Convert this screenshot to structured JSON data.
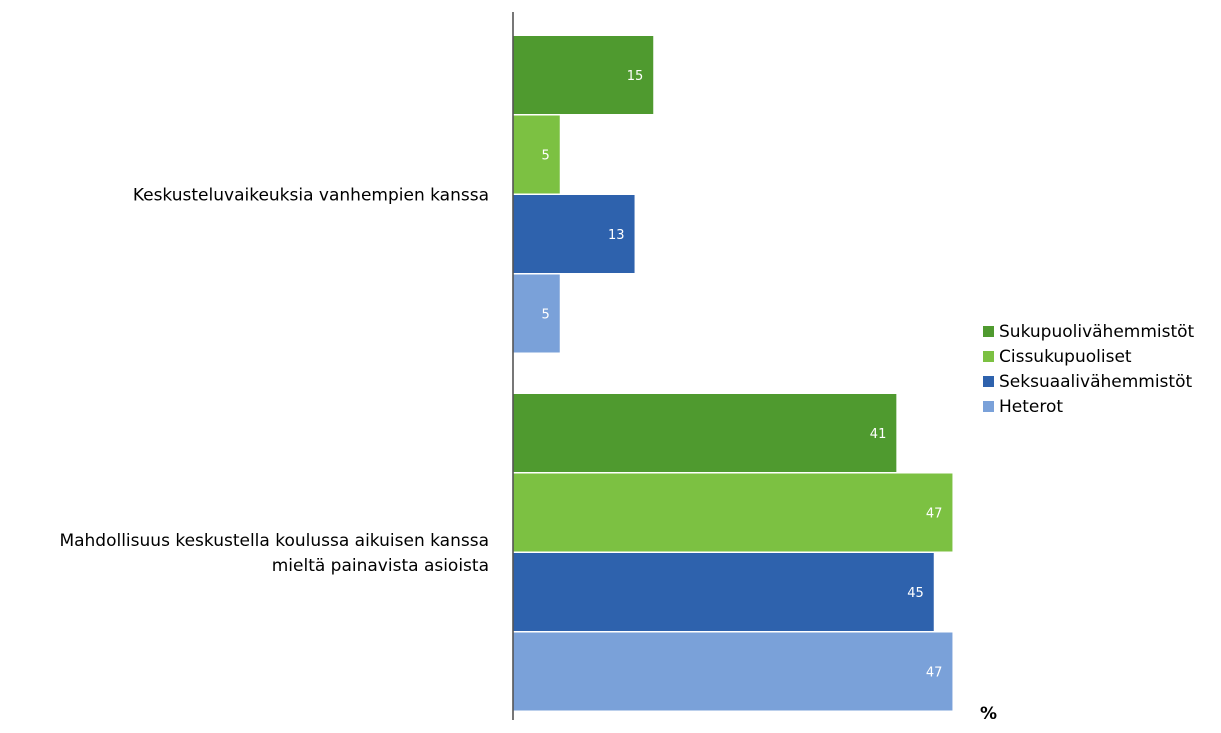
{
  "chart_data": {
    "type": "bar",
    "orientation": "horizontal",
    "categories": [
      "Keskusteluvaikeuksia vanhempien kanssa",
      "Mahdollisuus keskustella koulussa aikuisen kanssa mieltä painavista asioista"
    ],
    "category_lines": [
      [
        "Keskusteluvaikeuksia vanhempien kanssa"
      ],
      [
        "Mahdollisuus keskustella koulussa aikuisen kanssa",
        "mieltä painavista asioista"
      ]
    ],
    "series": [
      {
        "name": "Sukupuolivähemmistöt",
        "color": "#4f9a2f",
        "values": [
          15,
          41
        ]
      },
      {
        "name": "Cissukupuoliset",
        "color": "#7cc142",
        "values": [
          5,
          47
        ]
      },
      {
        "name": "Seksuaalivähemmistöt",
        "color": "#2e62ad",
        "values": [
          13,
          45
        ]
      },
      {
        "name": "Heterot",
        "color": "#7aa1d9",
        "values": [
          5,
          47
        ]
      }
    ],
    "data_labels": true,
    "xlabel": "%",
    "ylabel": "",
    "title": "",
    "xlim": [
      0,
      75
    ],
    "grid": false,
    "legend_position": "right"
  }
}
